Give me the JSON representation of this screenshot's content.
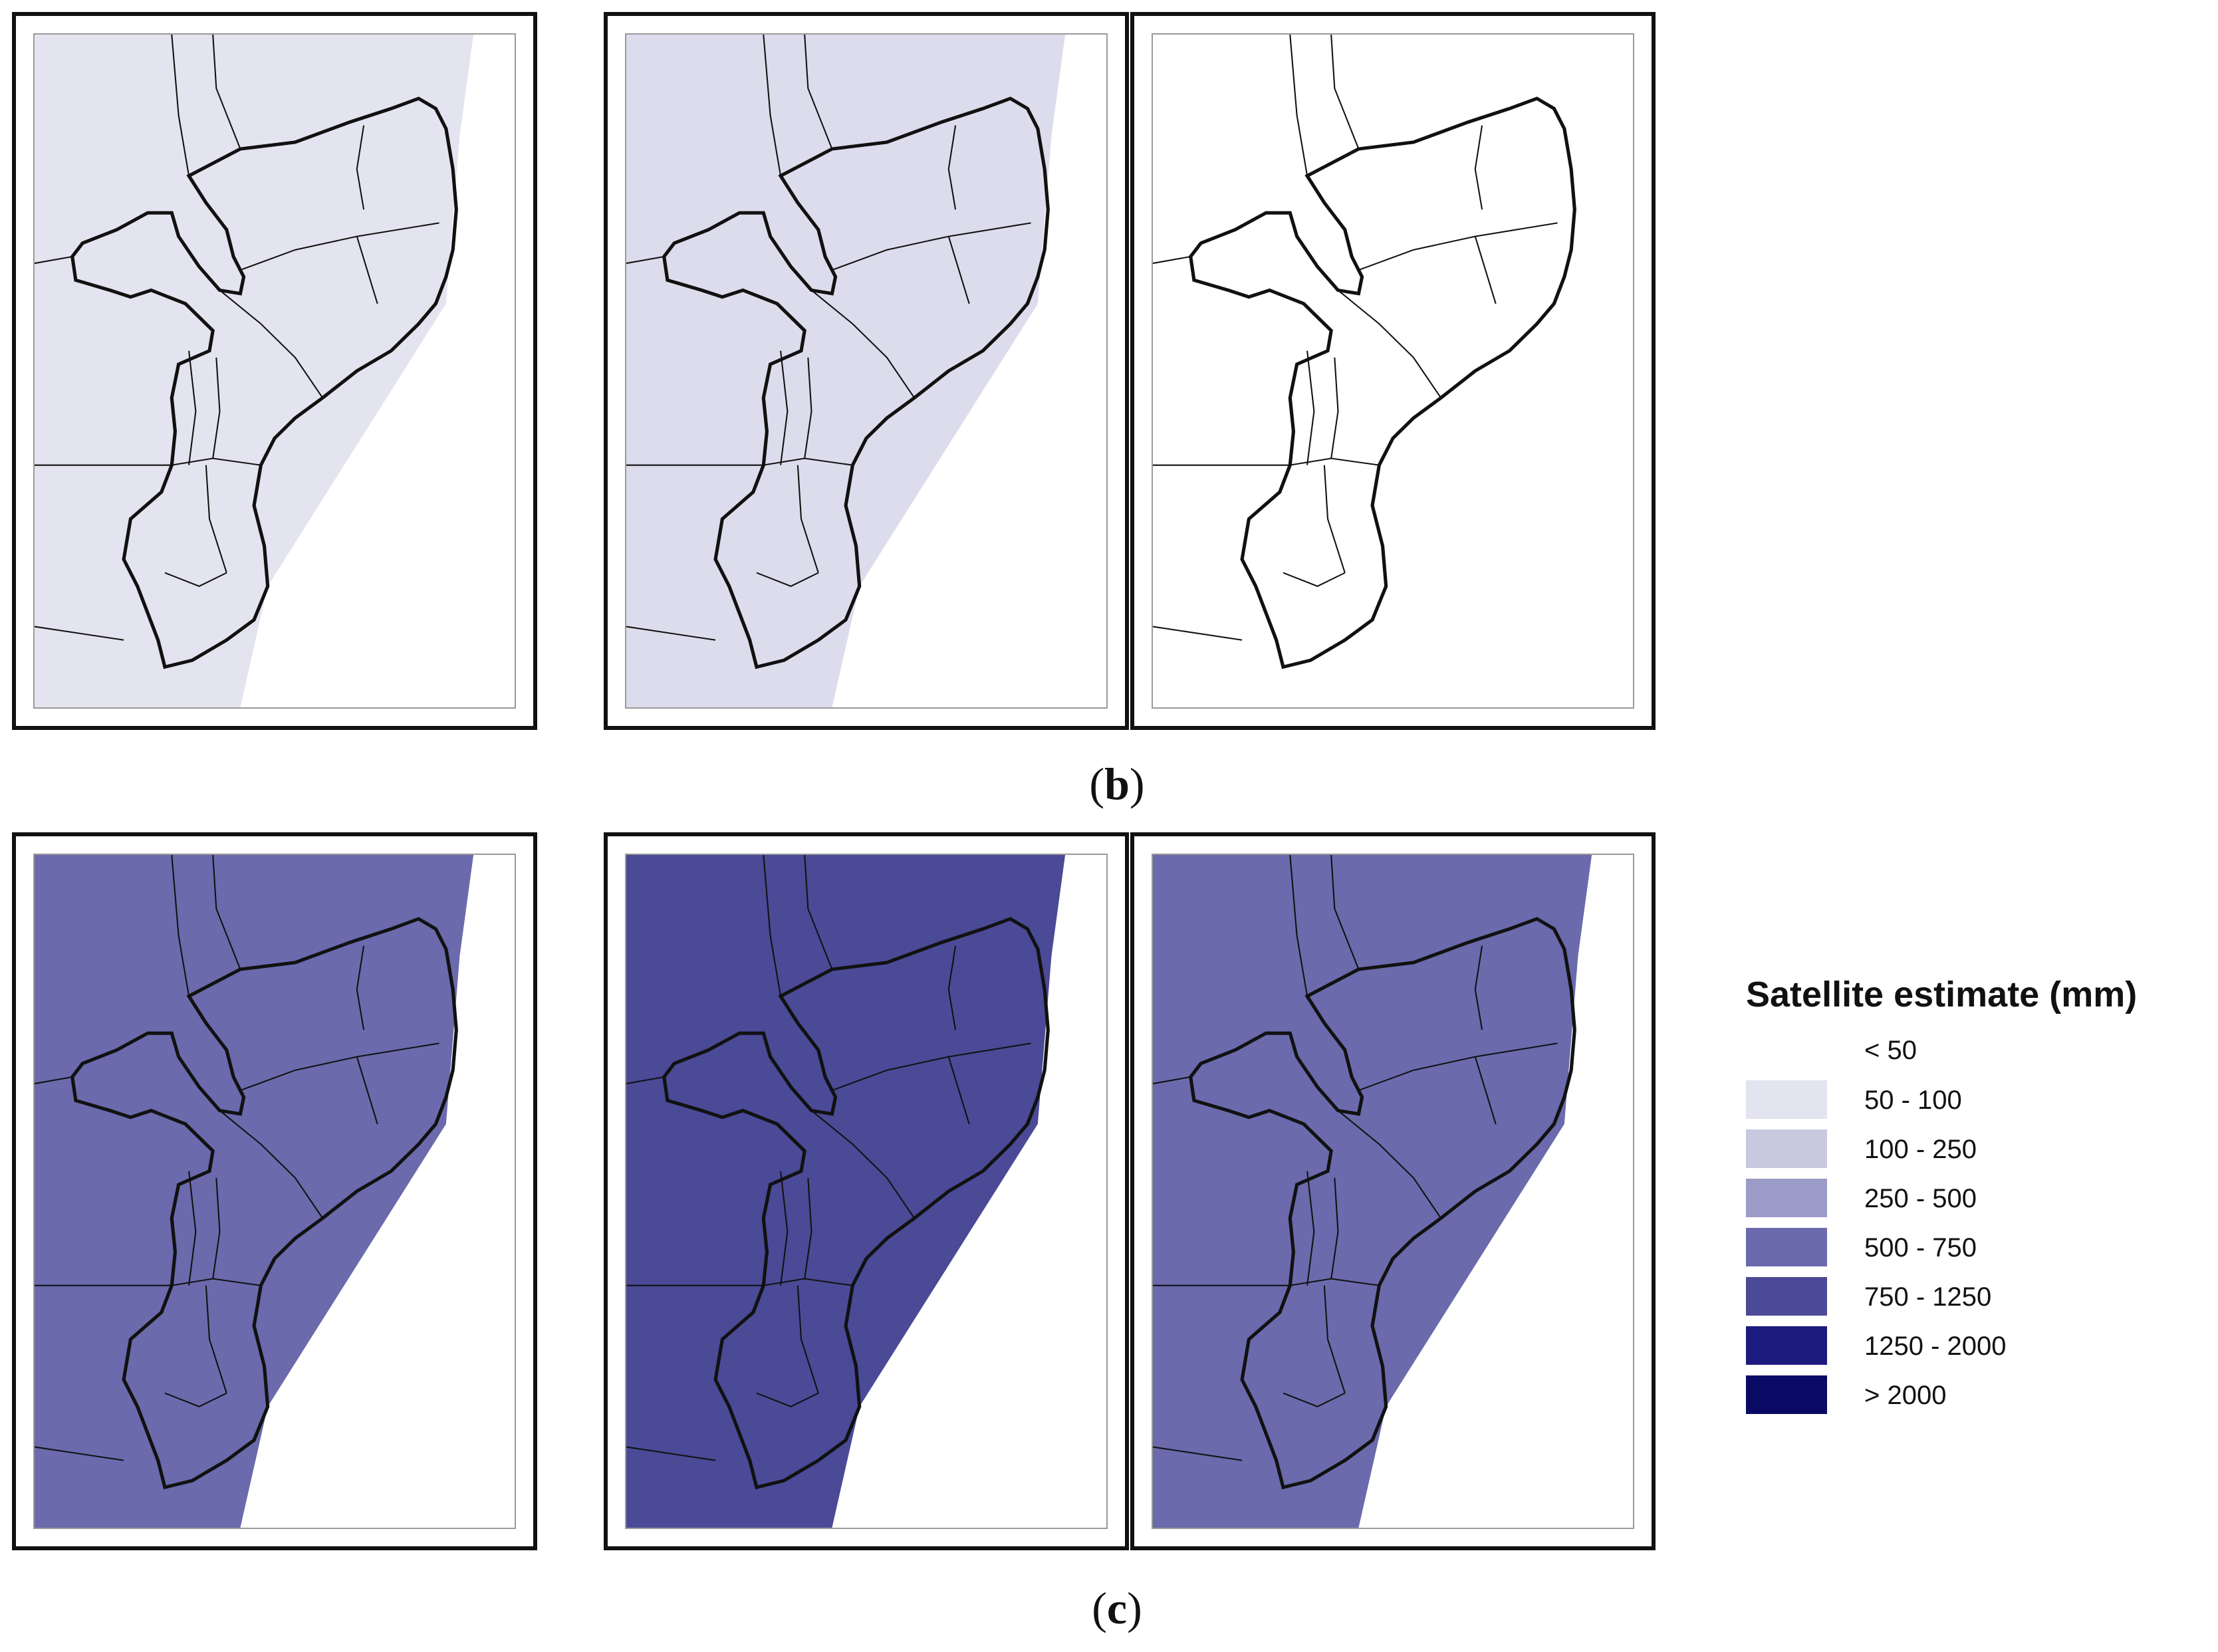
{
  "captions": {
    "b": "b",
    "c": "c"
  },
  "legend": {
    "title": "Satellite estimate (mm)",
    "classes": [
      {
        "label": "< 50",
        "color": "#ffffff"
      },
      {
        "label": "50 - 100",
        "color": "#e4e4f0"
      },
      {
        "label": "100 - 250",
        "color": "#c8c8df"
      },
      {
        "label": "250 - 500",
        "color": "#9b9bc8"
      },
      {
        "label": "500 - 750",
        "color": "#6a6aad"
      },
      {
        "label": "750 - 1250",
        "color": "#4a4a97"
      },
      {
        "label": "1250 - 2000",
        "color": "#1d1a7e"
      },
      {
        "label": "> 2000",
        "color": "#0a0a64"
      }
    ]
  },
  "maps": {
    "row_b": [
      "#e4e4f0",
      "#dcdcec",
      "#ffffff"
    ],
    "row_c": [
      "#6a6aad",
      "#4a4a97",
      "#6a6aad"
    ]
  }
}
